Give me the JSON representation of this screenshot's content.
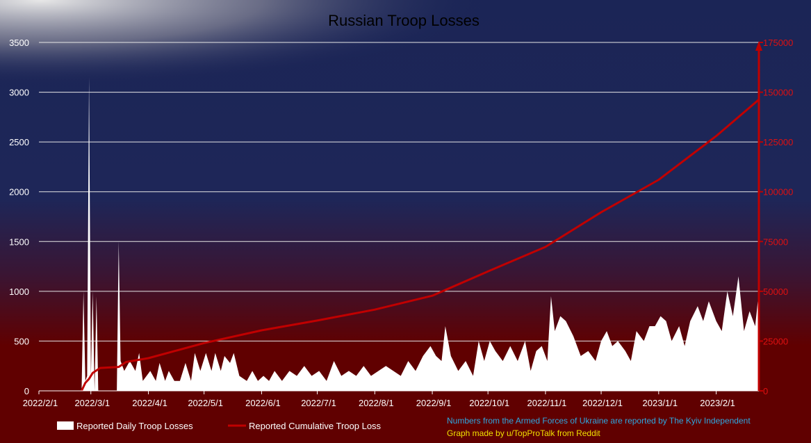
{
  "chart_data": {
    "type": "area+line",
    "title": "Russian Troop Losses",
    "xlabel": "",
    "ylabel": "",
    "x_ticks": [
      "2022/2/1",
      "2022/3/1",
      "2022/4/1",
      "2022/5/1",
      "2022/6/1",
      "2022/7/1",
      "2022/8/1",
      "2022/9/1",
      "2022/10/1",
      "2022/11/1",
      "2022/12/1",
      "2023/1/1",
      "2023/2/1"
    ],
    "xlim": [
      "2022-02-01",
      "2023-02-24"
    ],
    "y_left": {
      "lim": [
        0,
        3500
      ],
      "ticks": [
        "0",
        "500",
        "1000",
        "1500",
        "2000",
        "2500",
        "3000",
        "3500"
      ]
    },
    "y_right": {
      "lim": [
        0,
        175000
      ],
      "ticks": [
        "0",
        "25000",
        "50000",
        "75000",
        "100000",
        "125000",
        "150000",
        "175000"
      ],
      "color": "#c00000"
    },
    "grid": true,
    "legend_position": "bottom-left",
    "series": [
      {
        "name": "Reported Daily Troop Losses",
        "type": "area",
        "axis": "left",
        "color": "#ffffff",
        "points": [
          [
            "2022-02-24",
            0
          ],
          [
            "2022-02-25",
            1000
          ],
          [
            "2022-02-26",
            100
          ],
          [
            "2022-02-27",
            150
          ],
          [
            "2022-02-28",
            3150
          ],
          [
            "2022-03-01",
            150
          ],
          [
            "2022-03-02",
            1000
          ],
          [
            "2022-03-03",
            0
          ],
          [
            "2022-03-04",
            950
          ],
          [
            "2022-03-05",
            0
          ],
          [
            "2022-03-15",
            0
          ],
          [
            "2022-03-16",
            1500
          ],
          [
            "2022-03-17",
            300
          ],
          [
            "2022-03-19",
            200
          ],
          [
            "2022-03-22",
            300
          ],
          [
            "2022-03-25",
            200
          ],
          [
            "2022-03-27",
            380
          ],
          [
            "2022-03-29",
            100
          ],
          [
            "2022-04-02",
            200
          ],
          [
            "2022-04-05",
            100
          ],
          [
            "2022-04-07",
            280
          ],
          [
            "2022-04-10",
            100
          ],
          [
            "2022-04-12",
            200
          ],
          [
            "2022-04-15",
            100
          ],
          [
            "2022-04-18",
            100
          ],
          [
            "2022-04-21",
            280
          ],
          [
            "2022-04-24",
            100
          ],
          [
            "2022-04-26",
            380
          ],
          [
            "2022-04-29",
            200
          ],
          [
            "2022-05-02",
            380
          ],
          [
            "2022-05-05",
            200
          ],
          [
            "2022-05-07",
            380
          ],
          [
            "2022-05-10",
            200
          ],
          [
            "2022-05-12",
            350
          ],
          [
            "2022-05-15",
            280
          ],
          [
            "2022-05-17",
            380
          ],
          [
            "2022-05-20",
            150
          ],
          [
            "2022-05-24",
            100
          ],
          [
            "2022-05-27",
            200
          ],
          [
            "2022-05-30",
            100
          ],
          [
            "2022-06-02",
            150
          ],
          [
            "2022-06-05",
            100
          ],
          [
            "2022-06-08",
            200
          ],
          [
            "2022-06-12",
            100
          ],
          [
            "2022-06-16",
            200
          ],
          [
            "2022-06-20",
            150
          ],
          [
            "2022-06-24",
            250
          ],
          [
            "2022-06-28",
            150
          ],
          [
            "2022-07-02",
            200
          ],
          [
            "2022-07-06",
            100
          ],
          [
            "2022-07-10",
            300
          ],
          [
            "2022-07-14",
            150
          ],
          [
            "2022-07-18",
            200
          ],
          [
            "2022-07-22",
            150
          ],
          [
            "2022-07-26",
            250
          ],
          [
            "2022-07-30",
            150
          ],
          [
            "2022-08-03",
            200
          ],
          [
            "2022-08-07",
            250
          ],
          [
            "2022-08-11",
            200
          ],
          [
            "2022-08-15",
            150
          ],
          [
            "2022-08-19",
            300
          ],
          [
            "2022-08-23",
            200
          ],
          [
            "2022-08-27",
            350
          ],
          [
            "2022-08-31",
            450
          ],
          [
            "2022-09-03",
            350
          ],
          [
            "2022-09-06",
            300
          ],
          [
            "2022-09-08",
            650
          ],
          [
            "2022-09-11",
            350
          ],
          [
            "2022-09-15",
            200
          ],
          [
            "2022-09-19",
            300
          ],
          [
            "2022-09-23",
            150
          ],
          [
            "2022-09-26",
            500
          ],
          [
            "2022-09-29",
            300
          ],
          [
            "2022-10-02",
            500
          ],
          [
            "2022-10-05",
            400
          ],
          [
            "2022-10-09",
            300
          ],
          [
            "2022-10-13",
            450
          ],
          [
            "2022-10-17",
            300
          ],
          [
            "2022-10-21",
            500
          ],
          [
            "2022-10-24",
            200
          ],
          [
            "2022-10-27",
            400
          ],
          [
            "2022-10-30",
            450
          ],
          [
            "2022-11-02",
            300
          ],
          [
            "2022-11-04",
            950
          ],
          [
            "2022-11-06",
            600
          ],
          [
            "2022-11-09",
            750
          ],
          [
            "2022-11-12",
            700
          ],
          [
            "2022-11-16",
            550
          ],
          [
            "2022-11-20",
            350
          ],
          [
            "2022-11-24",
            400
          ],
          [
            "2022-11-28",
            300
          ],
          [
            "2022-12-01",
            500
          ],
          [
            "2022-12-04",
            600
          ],
          [
            "2022-12-07",
            450
          ],
          [
            "2022-12-10",
            500
          ],
          [
            "2022-12-14",
            400
          ],
          [
            "2022-12-17",
            300
          ],
          [
            "2022-12-20",
            600
          ],
          [
            "2022-12-24",
            500
          ],
          [
            "2022-12-27",
            650
          ],
          [
            "2022-12-30",
            650
          ],
          [
            "2023-01-02",
            750
          ],
          [
            "2023-01-05",
            700
          ],
          [
            "2023-01-08",
            500
          ],
          [
            "2023-01-12",
            650
          ],
          [
            "2023-01-15",
            450
          ],
          [
            "2023-01-18",
            700
          ],
          [
            "2023-01-22",
            850
          ],
          [
            "2023-01-25",
            700
          ],
          [
            "2023-01-28",
            900
          ],
          [
            "2023-02-01",
            700
          ],
          [
            "2023-02-04",
            600
          ],
          [
            "2023-02-07",
            1000
          ],
          [
            "2023-02-10",
            750
          ],
          [
            "2023-02-13",
            1150
          ],
          [
            "2023-02-16",
            600
          ],
          [
            "2023-02-19",
            800
          ],
          [
            "2023-02-22",
            650
          ],
          [
            "2023-02-24",
            1000
          ]
        ]
      },
      {
        "name": "Reported Cumulative Troop Loss",
        "type": "line",
        "axis": "right",
        "color": "#c00000",
        "points": [
          [
            "2022-02-24",
            0
          ],
          [
            "2022-02-26",
            4000
          ],
          [
            "2022-02-28",
            6000
          ],
          [
            "2022-03-02",
            9000
          ],
          [
            "2022-03-06",
            11500
          ],
          [
            "2022-03-16",
            12000
          ],
          [
            "2022-03-20",
            14500
          ],
          [
            "2022-04-01",
            16400
          ],
          [
            "2022-05-01",
            24000
          ],
          [
            "2022-06-01",
            30400
          ],
          [
            "2022-07-01",
            35300
          ],
          [
            "2022-08-01",
            40800
          ],
          [
            "2022-09-01",
            47800
          ],
          [
            "2022-10-01",
            60000
          ],
          [
            "2022-11-01",
            72300
          ],
          [
            "2022-12-01",
            89700
          ],
          [
            "2023-01-01",
            106000
          ],
          [
            "2023-02-01",
            128000
          ],
          [
            "2023-02-24",
            146300
          ]
        ]
      }
    ],
    "annotations": [
      "Numbers from the Armed Forces of Ukraine are reported by The Kyiv Independent",
      "Graph made by u/TopProTalk from Reddit"
    ]
  },
  "legend": {
    "daily": "Reported Daily Troop Losses",
    "cumulative": "Reported Cumulative Troop Loss"
  },
  "credits": {
    "source": "Numbers from the Armed Forces of Ukraine are reported by The Kyiv Independent",
    "author": "Graph made by u/TopProTalk from Reddit",
    "source_color": "#2fa8e0",
    "author_color": "#f0e000"
  }
}
